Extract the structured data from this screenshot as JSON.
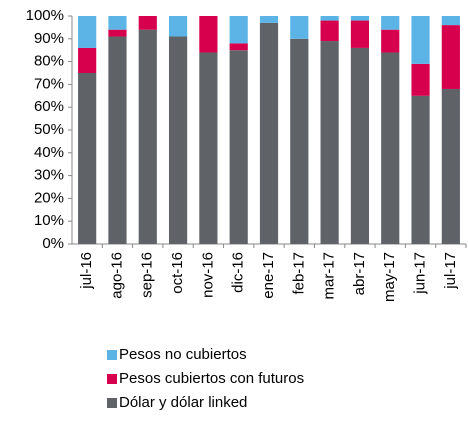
{
  "chart_data": {
    "type": "stacked_bar",
    "categories": [
      "jul-16",
      "ago-16",
      "sep-16",
      "oct-16",
      "nov-16",
      "dic-16",
      "ene-17",
      "feb-17",
      "mar-17",
      "abr-17",
      "may-17",
      "jun-17",
      "jul-17"
    ],
    "series": [
      {
        "name": "Dólar y dólar linked",
        "color": "#5f6368",
        "values": [
          75,
          91,
          94,
          91,
          84,
          85,
          97,
          90,
          89,
          86,
          84,
          65,
          68
        ]
      },
      {
        "name": "Pesos cubiertos con futuros",
        "color": "#d6004c",
        "values": [
          11,
          3,
          6,
          0,
          16,
          3,
          0,
          0,
          9,
          12,
          10,
          14,
          28
        ]
      },
      {
        "name": "Pesos no cubiertos",
        "color": "#5bb4e5",
        "values": [
          14,
          6,
          0,
          9,
          0,
          12,
          3,
          10,
          2,
          2,
          6,
          21,
          4
        ]
      }
    ],
    "ylim": [
      0,
      100
    ],
    "yticks": [
      {
        "value": 0,
        "label": "0%"
      },
      {
        "value": 10,
        "label": "10%"
      },
      {
        "value": 20,
        "label": "20%"
      },
      {
        "value": 30,
        "label": "30%"
      },
      {
        "value": 40,
        "label": "40%"
      },
      {
        "value": 50,
        "label": "50%"
      },
      {
        "value": 60,
        "label": "60%"
      },
      {
        "value": 70,
        "label": "70%"
      },
      {
        "value": 80,
        "label": "80%"
      },
      {
        "value": 90,
        "label": "90%"
      },
      {
        "value": 100,
        "label": "100%"
      }
    ],
    "grid": false,
    "legend": "bottom"
  }
}
